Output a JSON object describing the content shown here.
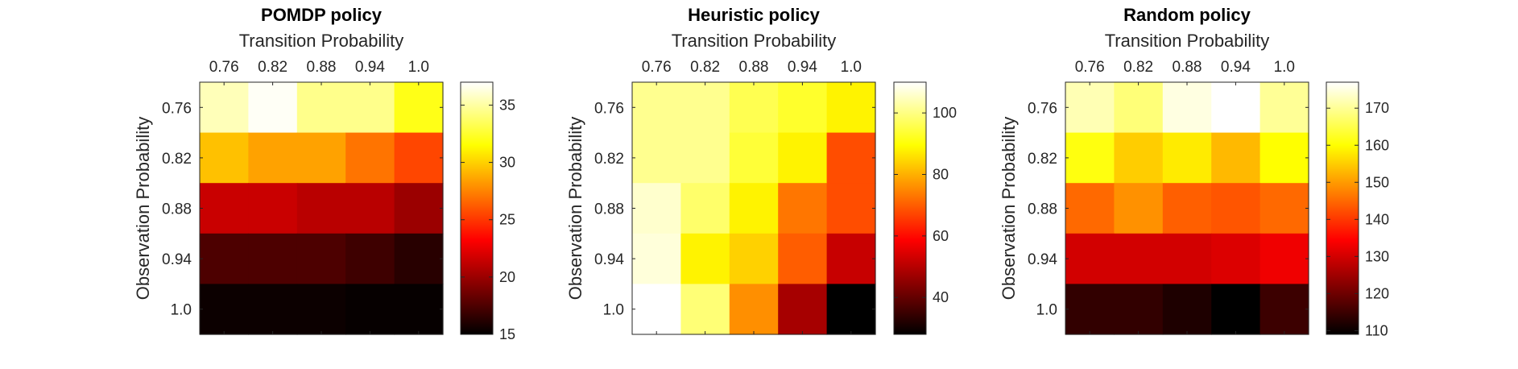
{
  "chart_data": [
    {
      "type": "heatmap",
      "title": "POMDP policy",
      "xlabel": "Transition Probability",
      "ylabel": "Observation Probability",
      "x_categories": [
        "0.76",
        "0.82",
        "0.88",
        "0.94",
        "1.0"
      ],
      "y_categories": [
        "0.76",
        "0.82",
        "0.88",
        "0.94",
        "1.0"
      ],
      "values": [
        [
          35.5,
          36.8,
          34.5,
          34.5,
          32.0
        ],
        [
          29.5,
          28.5,
          28.5,
          27.0,
          25.5
        ],
        [
          21.5,
          21.5,
          21.0,
          21.0,
          20.0
        ],
        [
          17.5,
          17.5,
          17.5,
          17.0,
          16.3
        ],
        [
          15.4,
          15.4,
          15.4,
          15.2,
          15.2
        ]
      ],
      "clim": [
        15,
        37
      ],
      "colorbar_ticks": [
        15,
        20,
        25,
        30,
        35
      ],
      "colormap": "hot"
    },
    {
      "type": "heatmap",
      "title": "Heuristic policy",
      "xlabel": "Transition Probability",
      "ylabel": "Observation Probability",
      "x_categories": [
        "0.76",
        "0.82",
        "0.88",
        "0.94",
        "1.0"
      ],
      "y_categories": [
        "0.76",
        "0.82",
        "0.88",
        "0.94",
        "1.0"
      ],
      "values": [
        [
          101,
          101,
          96,
          93,
          88
        ],
        [
          101,
          101,
          94,
          88,
          68
        ],
        [
          106,
          98,
          88,
          73,
          68
        ],
        [
          107,
          88,
          84,
          70,
          52
        ],
        [
          110,
          99,
          76,
          48,
          28
        ]
      ],
      "clim": [
        28,
        110
      ],
      "colorbar_ticks": [
        40,
        60,
        80,
        100
      ],
      "colormap": "hot"
    },
    {
      "type": "heatmap",
      "title": "Random policy",
      "xlabel": "Transition Probability",
      "ylabel": "Observation Probability",
      "x_categories": [
        "0.76",
        "0.82",
        "0.88",
        "0.94",
        "1.0"
      ],
      "y_categories": [
        "0.76",
        "0.82",
        "0.88",
        "0.94",
        "1.0"
      ],
      "values": [
        [
          172,
          168,
          175,
          177,
          170
        ],
        [
          161,
          155,
          158,
          153,
          160
        ],
        [
          145,
          149,
          144,
          143,
          145
        ],
        [
          130,
          130,
          130,
          131,
          133
        ],
        [
          114,
          114,
          112,
          109,
          115
        ]
      ],
      "clim": [
        109,
        177
      ],
      "colorbar_ticks": [
        110,
        120,
        130,
        140,
        150,
        160,
        170
      ],
      "colormap": "hot"
    }
  ]
}
